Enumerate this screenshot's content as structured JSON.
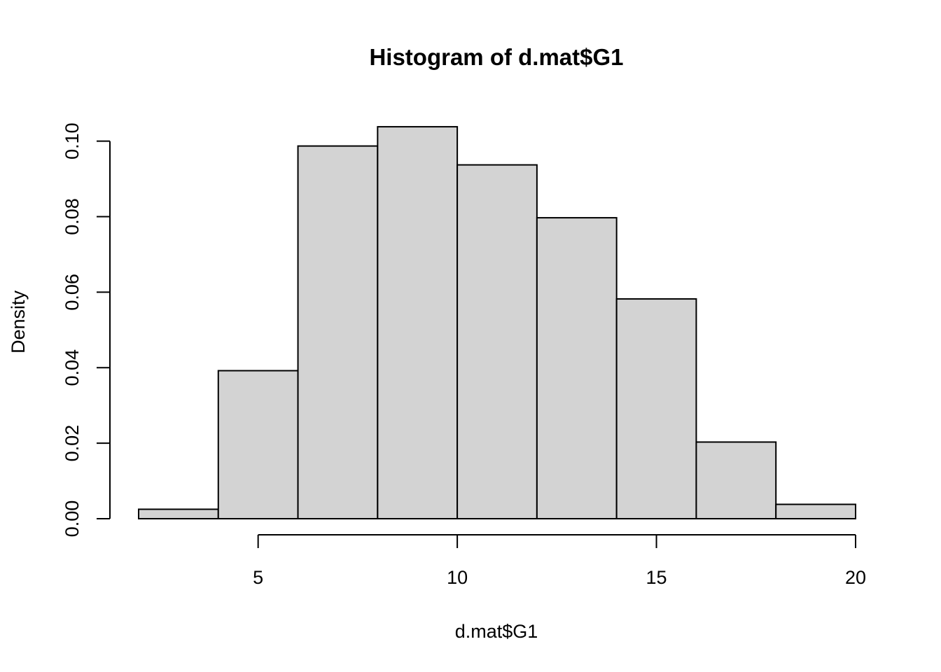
{
  "chart_data": {
    "type": "bar",
    "title": "Histogram of d.mat$G1",
    "xlabel": "d.mat$G1",
    "ylabel": "Density",
    "bins": [
      {
        "from": 2,
        "to": 4,
        "density": 0.0025
      },
      {
        "from": 4,
        "to": 6,
        "density": 0.0392
      },
      {
        "from": 6,
        "to": 8,
        "density": 0.0987
      },
      {
        "from": 8,
        "to": 10,
        "density": 0.1038
      },
      {
        "from": 10,
        "to": 12,
        "density": 0.0937
      },
      {
        "from": 12,
        "to": 14,
        "density": 0.0797
      },
      {
        "from": 14,
        "to": 16,
        "density": 0.0582
      },
      {
        "from": 16,
        "to": 18,
        "density": 0.0203
      },
      {
        "from": 18,
        "to": 20,
        "density": 0.0038
      }
    ],
    "xlim": [
      2,
      20
    ],
    "ylim": [
      0,
      0.104
    ],
    "x_ticks": [
      5,
      10,
      15,
      20
    ],
    "x_tick_labels": [
      "5",
      "10",
      "15",
      "20"
    ],
    "y_ticks": [
      0,
      0.02,
      0.04,
      0.06,
      0.08,
      0.1
    ],
    "y_tick_labels": [
      "0.00",
      "0.02",
      "0.04",
      "0.06",
      "0.08",
      "0.10"
    ],
    "bar_fill": "#d3d3d3",
    "bar_stroke": "#000000",
    "grid": false
  }
}
